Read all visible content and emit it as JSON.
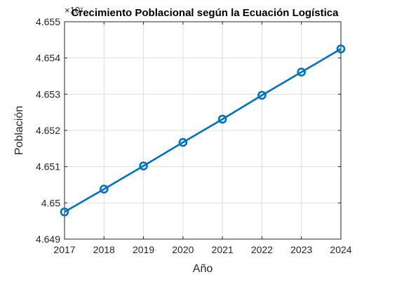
{
  "chart_data": {
    "type": "line",
    "title": "Crecimiento Poblacional según la Ecuación Logística",
    "xlabel": "Año",
    "ylabel": "Población",
    "exponent_label": "×10⁷",
    "x": [
      2017,
      2018,
      2019,
      2020,
      2021,
      2022,
      2023,
      2024
    ],
    "y": [
      4.64975,
      4.65038,
      4.65102,
      4.65167,
      4.65231,
      4.65297,
      4.65361,
      4.65425
    ],
    "xlim": [
      2017,
      2024
    ],
    "ylim": [
      4.649,
      4.655
    ],
    "x_ticks": [
      "2017",
      "2018",
      "2019",
      "2020",
      "2021",
      "2022",
      "2023",
      "2024"
    ],
    "y_ticks": [
      "4.649",
      "4.65",
      "4.651",
      "4.652",
      "4.653",
      "4.654",
      "4.655"
    ],
    "grid": true,
    "marker": "circle",
    "line_color": "#0072BD"
  }
}
